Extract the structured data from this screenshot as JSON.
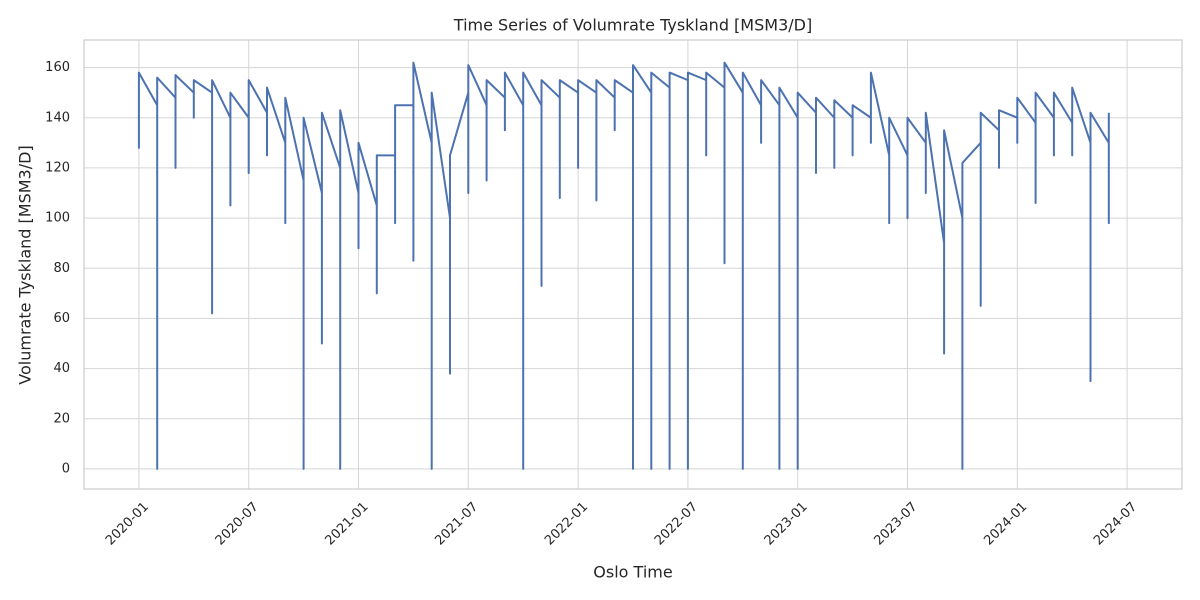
{
  "chart_data": {
    "type": "line",
    "title": "Time Series of Volumrate Tyskland [MSM3/D]",
    "x_label": "Oslo Time",
    "y_label": "Volumrate Tyskland [MSM3/D]",
    "color": "#4c72b0",
    "grid": true,
    "xlim": [
      "2019-10",
      "2024-10"
    ],
    "xticks": [
      "2020-01",
      "2020-07",
      "2021-01",
      "2021-07",
      "2022-01",
      "2022-07",
      "2023-01",
      "2023-07",
      "2024-01",
      "2024-07"
    ],
    "ylim": [
      -8,
      171
    ],
    "yticks": [
      0,
      20,
      40,
      60,
      80,
      100,
      120,
      140,
      160
    ],
    "x": [
      "2020-01",
      "2020-01",
      "2020-01",
      "2020-02",
      "2020-02",
      "2020-02",
      "2020-03",
      "2020-03",
      "2020-03",
      "2020-04",
      "2020-04",
      "2020-04",
      "2020-05",
      "2020-05",
      "2020-05",
      "2020-06",
      "2020-06",
      "2020-06",
      "2020-07",
      "2020-07",
      "2020-07",
      "2020-08",
      "2020-08",
      "2020-08",
      "2020-09",
      "2020-09",
      "2020-09",
      "2020-10",
      "2020-10",
      "2020-10",
      "2020-11",
      "2020-11",
      "2020-11",
      "2020-12",
      "2020-12",
      "2020-12",
      "2021-01",
      "2021-01",
      "2021-01",
      "2021-02",
      "2021-02",
      "2021-02",
      "2021-03",
      "2021-03",
      "2021-03",
      "2021-04",
      "2021-04",
      "2021-04",
      "2021-05",
      "2021-05",
      "2021-05",
      "2021-06",
      "2021-06",
      "2021-06",
      "2021-07",
      "2021-07",
      "2021-07",
      "2021-08",
      "2021-08",
      "2021-08",
      "2021-09",
      "2021-09",
      "2021-09",
      "2021-10",
      "2021-10",
      "2021-10",
      "2021-11",
      "2021-11",
      "2021-11",
      "2021-12",
      "2021-12",
      "2021-12",
      "2022-01",
      "2022-01",
      "2022-01",
      "2022-02",
      "2022-02",
      "2022-02",
      "2022-03",
      "2022-03",
      "2022-03",
      "2022-04",
      "2022-04",
      "2022-04",
      "2022-05",
      "2022-05",
      "2022-05",
      "2022-06",
      "2022-06",
      "2022-06",
      "2022-07",
      "2022-07",
      "2022-07",
      "2022-08",
      "2022-08",
      "2022-08",
      "2022-09",
      "2022-09",
      "2022-09",
      "2022-10",
      "2022-10",
      "2022-10",
      "2022-11",
      "2022-11",
      "2022-11",
      "2022-12",
      "2022-12",
      "2022-12",
      "2023-01",
      "2023-01",
      "2023-01",
      "2023-02",
      "2023-02",
      "2023-02",
      "2023-03",
      "2023-03",
      "2023-03",
      "2023-04",
      "2023-04",
      "2023-04",
      "2023-05",
      "2023-05",
      "2023-05",
      "2023-06",
      "2023-06",
      "2023-06",
      "2023-07",
      "2023-07",
      "2023-07",
      "2023-08",
      "2023-08",
      "2023-08",
      "2023-09",
      "2023-09",
      "2023-09",
      "2023-10",
      "2023-10",
      "2023-10",
      "2023-11",
      "2023-11",
      "2023-11",
      "2023-12",
      "2023-12",
      "2023-12",
      "2024-01",
      "2024-01",
      "2024-01",
      "2024-02",
      "2024-02",
      "2024-02",
      "2024-03",
      "2024-03",
      "2024-03",
      "2024-04",
      "2024-04",
      "2024-04",
      "2024-05",
      "2024-05",
      "2024-05",
      "2024-06",
      "2024-06",
      "2024-06"
    ],
    "values": [
      150,
      128,
      158,
      145,
      0,
      156,
      148,
      120,
      157,
      150,
      140,
      155,
      150,
      62,
      155,
      140,
      105,
      150,
      140,
      118,
      155,
      142,
      125,
      152,
      130,
      98,
      148,
      115,
      0,
      140,
      110,
      50,
      142,
      120,
      0,
      143,
      110,
      88,
      130,
      105,
      70,
      125,
      125,
      98,
      145,
      145,
      83,
      162,
      130,
      0,
      150,
      100,
      38,
      125,
      150,
      110,
      161,
      145,
      115,
      155,
      148,
      135,
      158,
      145,
      0,
      158,
      145,
      73,
      155,
      148,
      108,
      155,
      150,
      120,
      155,
      150,
      107,
      155,
      148,
      135,
      155,
      150,
      0,
      161,
      150,
      0,
      158,
      152,
      0,
      158,
      155,
      0,
      158,
      155,
      125,
      158,
      152,
      82,
      162,
      150,
      0,
      158,
      145,
      130,
      155,
      145,
      0,
      152,
      140,
      0,
      150,
      142,
      118,
      148,
      140,
      120,
      147,
      140,
      125,
      145,
      140,
      130,
      158,
      125,
      98,
      140,
      125,
      100,
      140,
      130,
      110,
      142,
      90,
      46,
      135,
      100,
      0,
      122,
      130,
      65,
      142,
      135,
      120,
      143,
      140,
      130,
      148,
      138,
      106,
      150,
      140,
      125,
      150,
      138,
      125,
      152,
      130,
      35,
      142,
      130,
      98,
      142
    ]
  }
}
